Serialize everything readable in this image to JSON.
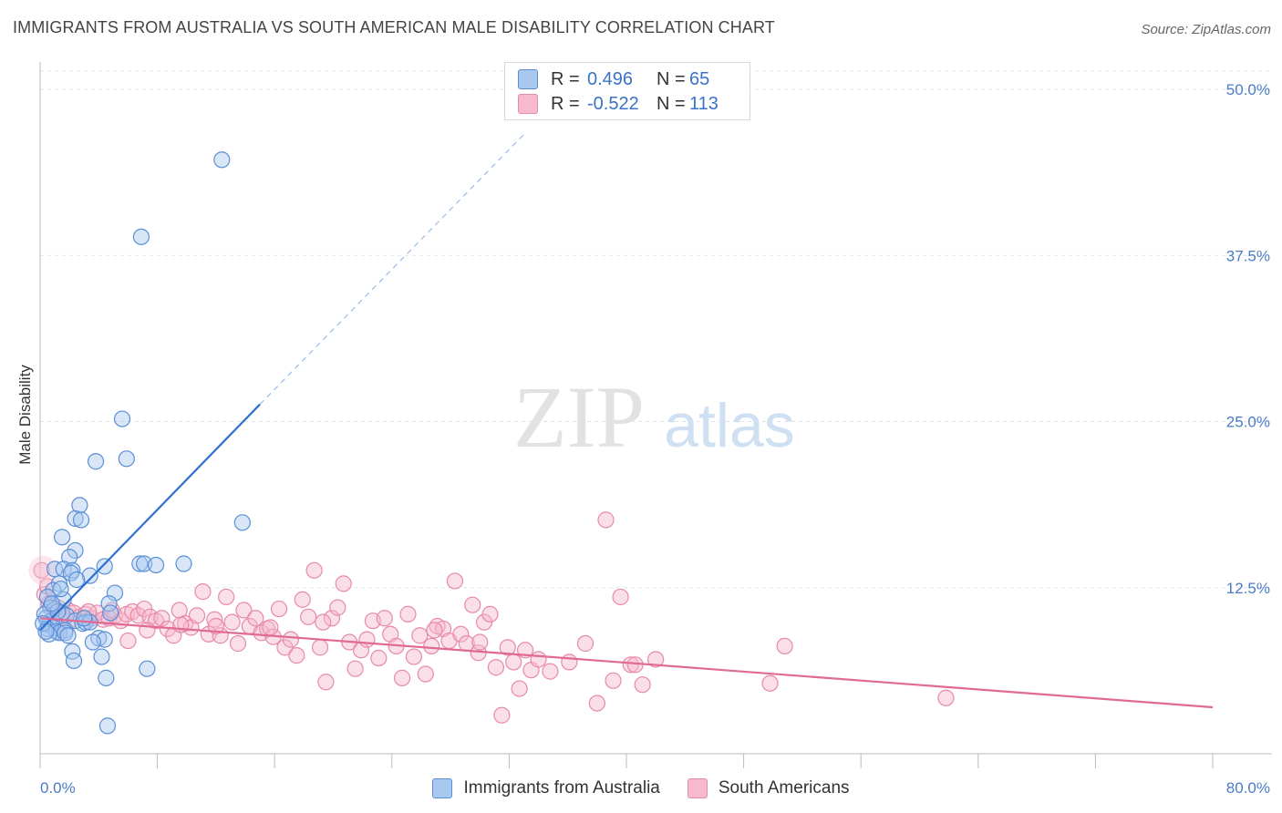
{
  "title": "IMMIGRANTS FROM AUSTRALIA VS SOUTH AMERICAN MALE DISABILITY CORRELATION CHART",
  "source": "Source: ZipAtlas.com",
  "watermark": {
    "zip": "ZIP",
    "atlas": "atlas"
  },
  "colors": {
    "blue_fill": "#a9c8f0",
    "blue_stroke": "#5a8fd6",
    "blue_line": "#2f6fd0",
    "pink_fill": "#f7b9cc",
    "pink_stroke": "#e68aa8",
    "pink_line": "#e06a93",
    "grid": "#dde3ea",
    "tick_text": "#4a7cc7"
  },
  "legend": {
    "rows": [
      {
        "r_label": "R =",
        "r_value": "0.496",
        "n_label": "N =",
        "n_value": "65"
      },
      {
        "r_label": "R =",
        "r_value": "-0.522",
        "n_label": "N =",
        "n_value": "113"
      }
    ]
  },
  "chart_data": {
    "type": "scatter",
    "title": "IMMIGRANTS FROM AUSTRALIA VS SOUTH AMERICAN MALE DISABILITY CORRELATION CHART",
    "xlabel": "",
    "ylabel": "Male Disability",
    "xlim": [
      0,
      80
    ],
    "ylim": [
      0,
      50
    ],
    "x_tick_labels": [
      "0.0%",
      "80.0%"
    ],
    "y_tick_labels": [
      "12.5%",
      "25.0%",
      "37.5%",
      "50.0%"
    ],
    "y_ticks": [
      12.5,
      25.0,
      37.5,
      50.0
    ],
    "grid": true,
    "legend_position": "top-center and bottom",
    "series": [
      {
        "name": "Immigrants from Australia",
        "R": 0.496,
        "N": 65,
        "trend": {
          "x0": 0,
          "y0": 9.3,
          "x1": 15,
          "y1": 26.3,
          "dashed_to_x": 33,
          "dashed_to_y": 46.6
        },
        "points": [
          [
            12.4,
            44.7
          ],
          [
            6.9,
            38.9
          ],
          [
            5.6,
            25.2
          ],
          [
            3.8,
            22.0
          ],
          [
            5.9,
            22.2
          ],
          [
            13.8,
            17.4
          ],
          [
            2.7,
            18.7
          ],
          [
            2.4,
            17.7
          ],
          [
            2.8,
            17.6
          ],
          [
            1.5,
            16.3
          ],
          [
            2.4,
            15.3
          ],
          [
            2.0,
            14.8
          ],
          [
            6.8,
            14.3
          ],
          [
            7.1,
            14.3
          ],
          [
            7.9,
            14.2
          ],
          [
            9.8,
            14.3
          ],
          [
            4.4,
            14.1
          ],
          [
            1.0,
            13.9
          ],
          [
            1.6,
            13.9
          ],
          [
            2.2,
            13.8
          ],
          [
            2.1,
            13.6
          ],
          [
            3.4,
            13.4
          ],
          [
            2.5,
            13.1
          ],
          [
            1.3,
            12.8
          ],
          [
            0.9,
            12.3
          ],
          [
            5.1,
            12.1
          ],
          [
            0.5,
            11.8
          ],
          [
            1.6,
            11.6
          ],
          [
            4.7,
            11.3
          ],
          [
            0.7,
            11.0
          ],
          [
            1.0,
            10.9
          ],
          [
            1.5,
            10.6
          ],
          [
            4.8,
            10.6
          ],
          [
            1.8,
            10.4
          ],
          [
            0.4,
            10.2
          ],
          [
            0.8,
            10.0
          ],
          [
            2.4,
            10.0
          ],
          [
            2.9,
            9.8
          ],
          [
            3.1,
            9.9
          ],
          [
            3.4,
            9.9
          ],
          [
            0.6,
            9.7
          ],
          [
            0.9,
            9.5
          ],
          [
            0.5,
            9.4
          ],
          [
            1.7,
            9.3
          ],
          [
            1.1,
            9.2
          ],
          [
            1.3,
            9.1
          ],
          [
            1.7,
            9.1
          ],
          [
            0.6,
            9.0
          ],
          [
            1.9,
            8.9
          ],
          [
            4.0,
            8.7
          ],
          [
            4.4,
            8.6
          ],
          [
            3.6,
            8.4
          ],
          [
            2.2,
            7.7
          ],
          [
            4.2,
            7.3
          ],
          [
            2.3,
            7.0
          ],
          [
            7.3,
            6.4
          ],
          [
            4.5,
            5.7
          ],
          [
            4.6,
            2.1
          ],
          [
            0.3,
            10.5
          ],
          [
            0.2,
            9.8
          ],
          [
            0.4,
            9.2
          ],
          [
            1.2,
            10.7
          ],
          [
            3.0,
            10.2
          ],
          [
            0.8,
            11.3
          ],
          [
            1.4,
            12.4
          ]
        ]
      },
      {
        "name": "South Americans",
        "R": -0.522,
        "N": 113,
        "trend": {
          "x0": 0,
          "y0": 10.2,
          "x1": 80,
          "y1": 3.5
        },
        "points": [
          [
            0.1,
            13.8
          ],
          [
            0.3,
            12.0
          ],
          [
            0.6,
            11.3
          ],
          [
            1.0,
            10.6
          ],
          [
            1.5,
            10.4
          ],
          [
            1.9,
            10.8
          ],
          [
            2.3,
            10.6
          ],
          [
            2.7,
            10.3
          ],
          [
            3.1,
            10.5
          ],
          [
            3.5,
            10.2
          ],
          [
            3.9,
            10.6
          ],
          [
            4.3,
            10.1
          ],
          [
            4.7,
            10.2
          ],
          [
            5.1,
            10.4
          ],
          [
            5.5,
            10.0
          ],
          [
            5.9,
            10.5
          ],
          [
            6.3,
            10.7
          ],
          [
            6.7,
            10.4
          ],
          [
            7.1,
            10.9
          ],
          [
            7.5,
            10.3
          ],
          [
            7.9,
            10.0
          ],
          [
            8.3,
            10.2
          ],
          [
            8.7,
            9.4
          ],
          [
            9.1,
            8.9
          ],
          [
            9.5,
            10.8
          ],
          [
            9.9,
            9.8
          ],
          [
            10.3,
            9.5
          ],
          [
            10.7,
            10.4
          ],
          [
            11.1,
            12.2
          ],
          [
            11.5,
            9.0
          ],
          [
            11.9,
            10.1
          ],
          [
            12.3,
            8.9
          ],
          [
            12.7,
            11.8
          ],
          [
            13.1,
            9.9
          ],
          [
            13.5,
            8.3
          ],
          [
            13.9,
            10.8
          ],
          [
            14.3,
            9.6
          ],
          [
            14.7,
            10.2
          ],
          [
            15.1,
            9.1
          ],
          [
            15.5,
            9.4
          ],
          [
            15.9,
            8.8
          ],
          [
            16.3,
            10.9
          ],
          [
            16.7,
            8.0
          ],
          [
            17.1,
            8.6
          ],
          [
            17.5,
            7.4
          ],
          [
            17.9,
            11.6
          ],
          [
            18.3,
            10.3
          ],
          [
            18.7,
            13.8
          ],
          [
            19.1,
            8.0
          ],
          [
            19.5,
            5.4
          ],
          [
            19.9,
            10.2
          ],
          [
            20.3,
            11.0
          ],
          [
            20.7,
            12.8
          ],
          [
            21.1,
            8.4
          ],
          [
            21.5,
            6.4
          ],
          [
            21.9,
            7.8
          ],
          [
            22.3,
            8.6
          ],
          [
            22.7,
            10.0
          ],
          [
            23.1,
            7.2
          ],
          [
            23.5,
            10.2
          ],
          [
            23.9,
            9.0
          ],
          [
            24.3,
            8.1
          ],
          [
            24.7,
            5.7
          ],
          [
            25.1,
            10.5
          ],
          [
            25.5,
            7.3
          ],
          [
            25.9,
            8.9
          ],
          [
            26.3,
            6.0
          ],
          [
            26.7,
            8.1
          ],
          [
            27.1,
            9.6
          ],
          [
            27.5,
            9.4
          ],
          [
            27.9,
            8.5
          ],
          [
            28.3,
            13.0
          ],
          [
            28.7,
            9.0
          ],
          [
            29.1,
            8.3
          ],
          [
            29.5,
            11.2
          ],
          [
            29.9,
            7.6
          ],
          [
            30.3,
            9.9
          ],
          [
            30.7,
            10.5
          ],
          [
            31.1,
            6.5
          ],
          [
            31.5,
            2.9
          ],
          [
            31.9,
            8.0
          ],
          [
            32.3,
            6.9
          ],
          [
            32.7,
            4.9
          ],
          [
            33.1,
            7.8
          ],
          [
            33.5,
            6.3
          ],
          [
            34.0,
            7.1
          ],
          [
            36.1,
            6.9
          ],
          [
            37.2,
            8.3
          ],
          [
            38.0,
            3.8
          ],
          [
            38.6,
            17.6
          ],
          [
            39.1,
            5.5
          ],
          [
            39.6,
            11.8
          ],
          [
            40.3,
            6.7
          ],
          [
            40.6,
            6.7
          ],
          [
            41.1,
            5.2
          ],
          [
            42.0,
            7.1
          ],
          [
            49.8,
            5.3
          ],
          [
            50.8,
            8.1
          ],
          [
            61.8,
            4.2
          ],
          [
            0.5,
            12.6
          ],
          [
            1.2,
            11.0
          ],
          [
            2.0,
            10.0
          ],
          [
            3.3,
            10.7
          ],
          [
            4.9,
            10.8
          ],
          [
            6.0,
            8.5
          ],
          [
            7.3,
            9.3
          ],
          [
            9.6,
            9.7
          ],
          [
            12.0,
            9.6
          ],
          [
            15.7,
            9.5
          ],
          [
            19.3,
            9.9
          ],
          [
            26.9,
            9.3
          ],
          [
            30.0,
            8.4
          ],
          [
            34.8,
            6.2
          ]
        ]
      }
    ]
  },
  "bottom_legend": {
    "items": [
      {
        "label": "Immigrants from Australia"
      },
      {
        "label": "South Americans"
      }
    ]
  }
}
